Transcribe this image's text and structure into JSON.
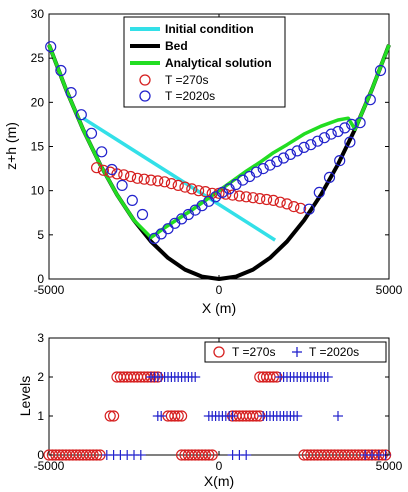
{
  "colors": {
    "initial": "#33e0e8",
    "bed": "#000000",
    "analytical": "#22dd22",
    "t270": "#d62020",
    "t2020": "#2222cc"
  },
  "chart_data": [
    {
      "type": "line",
      "xlabel": "X (m)",
      "ylabel": "z+h (m)",
      "xlim": [
        -5000,
        5000
      ],
      "ylim": [
        0,
        30
      ],
      "xticks": [
        "-5000",
        "0",
        "5000"
      ],
      "yticks": [
        "0",
        "5",
        "10",
        "15",
        "20",
        "25",
        "30"
      ],
      "legend": {
        "placement": "top-center",
        "entries": [
          "Initial condition",
          "Bed",
          "Analytical solution",
          "T =270s",
          "T =2020s"
        ]
      },
      "series": [
        {
          "name": "Initial condition",
          "style": "line",
          "color_key": "initial",
          "x": [
            -4000,
            1650
          ],
          "y": [
            18.2,
            4.4
          ]
        },
        {
          "name": "Bed",
          "style": "line",
          "color_key": "bed",
          "x": [
            -5000,
            -4500,
            -4000,
            -3500,
            -3000,
            -2500,
            -2000,
            -1500,
            -1000,
            -500,
            0,
            500,
            1000,
            1500,
            2000,
            2500,
            3000,
            3500,
            4000,
            4500,
            5000
          ],
          "y": [
            26.5,
            21.47,
            16.96,
            12.99,
            9.54,
            6.63,
            4.24,
            2.39,
            1.06,
            0.27,
            0,
            0.27,
            1.06,
            2.39,
            4.24,
            6.63,
            9.54,
            12.99,
            16.96,
            21.47,
            26.5
          ]
        },
        {
          "name": "Analytical solution",
          "style": "line",
          "color_key": "analytical",
          "x": [
            -5000,
            -4500,
            -4000,
            -3500,
            -3000,
            -2500,
            -2000,
            -1600,
            -1200,
            -800,
            -400,
            0,
            400,
            800,
            1200,
            1600,
            2000,
            2500,
            3000,
            3500,
            3800,
            4000,
            4500,
            5000
          ],
          "y": [
            26.5,
            21.47,
            16.96,
            12.99,
            9.54,
            6.63,
            4.7,
            5.8,
            6.8,
            7.8,
            8.9,
            10.0,
            11.1,
            12.2,
            13.2,
            14.3,
            15.2,
            16.4,
            17.3,
            18.0,
            18.2,
            16.96,
            21.47,
            26.5
          ]
        },
        {
          "name": "T =270s",
          "style": "markers-o",
          "color_key": "t270",
          "x": [
            -3600,
            -3400,
            -3200,
            -3000,
            -2800,
            -2600,
            -2400,
            -2200,
            -2000,
            -1800,
            -1600,
            -1400,
            -1200,
            -1000,
            -800,
            -600,
            -400,
            -200,
            0,
            200,
            400,
            600,
            800,
            1000,
            1200,
            1400,
            1600,
            1800,
            2000,
            2200,
            2400
          ],
          "y": [
            12.6,
            12.3,
            12.1,
            11.9,
            11.8,
            11.6,
            11.4,
            11.3,
            11.2,
            11.1,
            11.0,
            10.8,
            10.6,
            10.4,
            10.2,
            10.0,
            9.9,
            9.7,
            9.7,
            9.6,
            9.5,
            9.4,
            9.3,
            9.2,
            9.1,
            9.0,
            8.9,
            8.7,
            8.5,
            8.2,
            8.0
          ]
        },
        {
          "name": "T =2020s",
          "style": "markers-o",
          "color_key": "t2020",
          "x": [
            -1900,
            -1700,
            -1500,
            -1300,
            -1100,
            -900,
            -700,
            -500,
            -300,
            -100,
            100,
            300,
            500,
            700,
            900,
            1100,
            1300,
            1500,
            1700,
            1900,
            2100,
            2300,
            2500,
            2700,
            2900,
            3100,
            3300,
            3500,
            3700,
            3900
          ],
          "y": [
            4.6,
            5.1,
            5.7,
            6.3,
            6.8,
            7.3,
            7.8,
            8.3,
            8.8,
            9.3,
            9.8,
            10.2,
            10.7,
            11.2,
            11.6,
            12.1,
            12.5,
            12.9,
            13.3,
            13.7,
            14.1,
            14.5,
            14.9,
            15.2,
            15.6,
            16.0,
            16.4,
            16.7,
            17.1,
            17.5
          ]
        },
        {
          "name": "",
          "style": "markers-o-edge",
          "color_key": "t2020",
          "x": [
            -4950,
            -4650,
            -4350,
            -4050,
            -3750,
            -3450,
            -3150,
            -2850,
            -2550,
            -2250,
            2650,
            2950,
            3250,
            3550,
            3850,
            4150,
            4450,
            4750
          ],
          "y": [
            26.3,
            23.6,
            21.1,
            18.6,
            16.5,
            14.4,
            12.4,
            10.6,
            8.9,
            7.3,
            7.9,
            9.8,
            11.5,
            13.4,
            15.5,
            17.7,
            20.3,
            23.6
          ]
        }
      ]
    },
    {
      "type": "scatter",
      "xlabel": "X(m)",
      "ylabel": "Levels",
      "xlim": [
        -5000,
        5000
      ],
      "ylim": [
        0,
        3
      ],
      "xticks": [
        "-5000",
        "0",
        "5000"
      ],
      "yticks": [
        "0",
        "1",
        "2",
        "3"
      ],
      "legend": {
        "placement": "top-right",
        "entries": [
          "T =270s",
          "T =2020s"
        ]
      },
      "series": [
        {
          "name": "T =270s",
          "style": "markers-o",
          "color_key": "t270",
          "points": [
            [
              -3000,
              2
            ],
            [
              -2900,
              2
            ],
            [
              -2800,
              2
            ],
            [
              -2700,
              2
            ],
            [
              -2600,
              2
            ],
            [
              -2500,
              2
            ],
            [
              -2400,
              2
            ],
            [
              -2300,
              2
            ],
            [
              -2200,
              2
            ],
            [
              -2100,
              2
            ],
            [
              -2000,
              2
            ],
            [
              -1900,
              2
            ],
            [
              -1800,
              2
            ],
            [
              1200,
              2
            ],
            [
              1300,
              2
            ],
            [
              1400,
              2
            ],
            [
              1500,
              2
            ],
            [
              1600,
              2
            ],
            [
              1700,
              2
            ],
            [
              -3200,
              1
            ],
            [
              -3100,
              1
            ],
            [
              -1500,
              1
            ],
            [
              -1400,
              1
            ],
            [
              -1300,
              1
            ],
            [
              -1200,
              1
            ],
            [
              -1100,
              1
            ],
            [
              400,
              1
            ],
            [
              500,
              1
            ],
            [
              600,
              1
            ],
            [
              700,
              1
            ],
            [
              800,
              1
            ],
            [
              900,
              1
            ],
            [
              1000,
              1
            ],
            [
              1100,
              1
            ],
            [
              1200,
              1
            ],
            [
              -5000,
              0
            ],
            [
              -4900,
              0
            ],
            [
              -4800,
              0
            ],
            [
              -4700,
              0
            ],
            [
              -4600,
              0
            ],
            [
              -4500,
              0
            ],
            [
              -4400,
              0
            ],
            [
              -4300,
              0
            ],
            [
              -4200,
              0
            ],
            [
              -4100,
              0
            ],
            [
              -4000,
              0
            ],
            [
              -3900,
              0
            ],
            [
              -3800,
              0
            ],
            [
              -3700,
              0
            ],
            [
              -3600,
              0
            ],
            [
              -3500,
              0
            ],
            [
              -1100,
              0
            ],
            [
              -1000,
              0
            ],
            [
              -900,
              0
            ],
            [
              -800,
              0
            ],
            [
              -700,
              0
            ],
            [
              -600,
              0
            ],
            [
              -500,
              0
            ],
            [
              -400,
              0
            ],
            [
              -300,
              0
            ],
            [
              -200,
              0
            ],
            [
              2500,
              0
            ],
            [
              2600,
              0
            ],
            [
              2700,
              0
            ],
            [
              2800,
              0
            ],
            [
              2900,
              0
            ],
            [
              3000,
              0
            ],
            [
              3100,
              0
            ],
            [
              3200,
              0
            ],
            [
              3300,
              0
            ],
            [
              3400,
              0
            ],
            [
              3500,
              0
            ],
            [
              3600,
              0
            ],
            [
              3700,
              0
            ],
            [
              3800,
              0
            ],
            [
              3900,
              0
            ],
            [
              4000,
              0
            ],
            [
              4100,
              0
            ],
            [
              4200,
              0
            ],
            [
              4300,
              0
            ],
            [
              4400,
              0
            ],
            [
              4500,
              0
            ],
            [
              4600,
              0
            ],
            [
              4700,
              0
            ],
            [
              4800,
              0
            ],
            [
              4900,
              0
            ]
          ]
        },
        {
          "name": "T =2020s",
          "style": "markers-plus",
          "color_key": "t2020",
          "points": [
            [
              -2000,
              2
            ],
            [
              -1900,
              2
            ],
            [
              -1800,
              2
            ],
            [
              -1700,
              2
            ],
            [
              -1600,
              2
            ],
            [
              -1500,
              2
            ],
            [
              -1400,
              2
            ],
            [
              -1300,
              2
            ],
            [
              -1200,
              2
            ],
            [
              -1100,
              2
            ],
            [
              -1000,
              2
            ],
            [
              -900,
              2
            ],
            [
              -800,
              2
            ],
            [
              -700,
              2
            ],
            [
              1800,
              2
            ],
            [
              1900,
              2
            ],
            [
              2000,
              2
            ],
            [
              2100,
              2
            ],
            [
              2200,
              2
            ],
            [
              2300,
              2
            ],
            [
              2400,
              2
            ],
            [
              2500,
              2
            ],
            [
              2600,
              2
            ],
            [
              2700,
              2
            ],
            [
              2800,
              2
            ],
            [
              2900,
              2
            ],
            [
              3000,
              2
            ],
            [
              3100,
              2
            ],
            [
              3200,
              2
            ],
            [
              -1800,
              1
            ],
            [
              -1700,
              1
            ],
            [
              -300,
              1
            ],
            [
              -200,
              1
            ],
            [
              -100,
              1
            ],
            [
              0,
              1
            ],
            [
              100,
              1
            ],
            [
              200,
              1
            ],
            [
              300,
              1
            ],
            [
              400,
              1
            ],
            [
              1300,
              1
            ],
            [
              1400,
              1
            ],
            [
              1500,
              1
            ],
            [
              1600,
              1
            ],
            [
              1700,
              1
            ],
            [
              1800,
              1
            ],
            [
              1900,
              1
            ],
            [
              2000,
              1
            ],
            [
              2100,
              1
            ],
            [
              2200,
              1
            ],
            [
              2300,
              1
            ],
            [
              3500,
              1
            ],
            [
              -3300,
              0
            ],
            [
              -3100,
              0
            ],
            [
              -2900,
              0
            ],
            [
              -2700,
              0
            ],
            [
              -2500,
              0
            ],
            [
              -2300,
              0
            ],
            [
              400,
              0
            ],
            [
              600,
              0
            ],
            [
              800,
              0
            ],
            [
              4300,
              0
            ],
            [
              4500,
              0
            ],
            [
              4700,
              0
            ],
            [
              4900,
              0
            ]
          ]
        }
      ]
    }
  ]
}
